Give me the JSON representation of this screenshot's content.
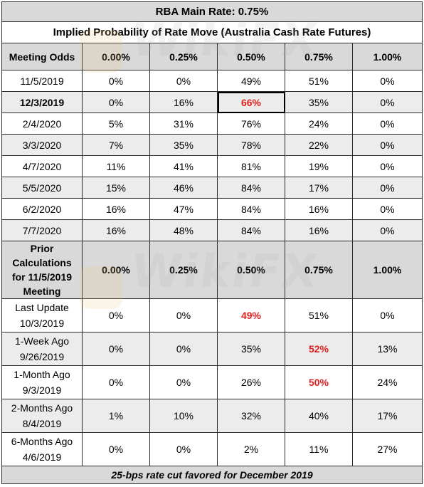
{
  "title": "RBA Main Rate: 0.75%",
  "subtitle": "Implied Probability of Rate Move (Australia Cash Rate Futures)",
  "odds_table": {
    "header": [
      "Meeting Odds",
      "0.00%",
      "0.25%",
      "0.50%",
      "0.75%",
      "1.00%"
    ],
    "rows": [
      {
        "date": "11/5/2019",
        "values": [
          "0%",
          "0%",
          "49%",
          "51%",
          "0%"
        ]
      },
      {
        "date": "12/3/2019",
        "values": [
          "0%",
          "16%",
          "66%",
          "35%",
          "0%"
        ]
      },
      {
        "date": "2/4/2020",
        "values": [
          "5%",
          "31%",
          "76%",
          "24%",
          "0%"
        ]
      },
      {
        "date": "3/3/2020",
        "values": [
          "7%",
          "35%",
          "78%",
          "22%",
          "0%"
        ]
      },
      {
        "date": "4/7/2020",
        "values": [
          "11%",
          "41%",
          "81%",
          "19%",
          "0%"
        ]
      },
      {
        "date": "5/5/2020",
        "values": [
          "15%",
          "46%",
          "84%",
          "17%",
          "0%"
        ]
      },
      {
        "date": "6/2/2020",
        "values": [
          "16%",
          "47%",
          "84%",
          "16%",
          "0%"
        ]
      },
      {
        "date": "7/7/2020",
        "values": [
          "16%",
          "48%",
          "84%",
          "16%",
          "0%"
        ]
      }
    ]
  },
  "prior_table": {
    "header_label_lines": [
      "Prior",
      "Calculations",
      "for 11/5/2019",
      "Meeting"
    ],
    "header": [
      "0.00%",
      "0.25%",
      "0.50%",
      "0.75%",
      "1.00%"
    ],
    "rows": [
      {
        "label": "Last Update",
        "date": "10/3/2019",
        "values": [
          "0%",
          "0%",
          "49%",
          "51%",
          "0%"
        ]
      },
      {
        "label": "1-Week Ago",
        "date": "9/26/2019",
        "values": [
          "0%",
          "0%",
          "35%",
          "52%",
          "13%"
        ]
      },
      {
        "label": "1-Month Ago",
        "date": "9/3/2019",
        "values": [
          "0%",
          "0%",
          "26%",
          "50%",
          "24%"
        ]
      },
      {
        "label": "2-Months Ago",
        "date": "8/4/2019",
        "values": [
          "1%",
          "10%",
          "32%",
          "40%",
          "17%"
        ]
      },
      {
        "label": "6-Months Ago",
        "date": "4/6/2019",
        "values": [
          "0%",
          "0%",
          "2%",
          "11%",
          "27%"
        ]
      }
    ]
  },
  "footer": "25-bps rate cut favored for December 2019",
  "watermark": "WikiFX",
  "colors": {
    "highlight": "#e02020",
    "header_bg": "#d9d9d9",
    "alt_bg": "#ececec"
  }
}
